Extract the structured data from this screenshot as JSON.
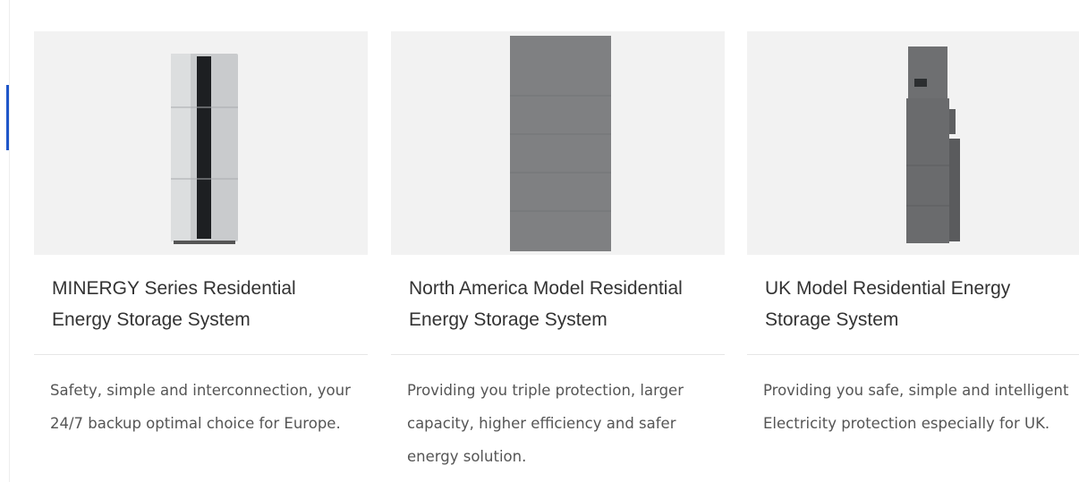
{
  "cards": [
    {
      "title": "MINERGY Series Residential Energy Storage System",
      "description": "Safety, simple and interconnection, your 24/7 backup optimal choice for Europe."
    },
    {
      "title": "North America Model Residential Energy Storage System",
      "description": "Providing you triple protection, larger capacity, higher efficiency and safer energy solution."
    },
    {
      "title": "UK Model Residential Energy Storage System",
      "description": "Providing you safe, simple and intelligent Electricity protection especially for UK."
    }
  ]
}
